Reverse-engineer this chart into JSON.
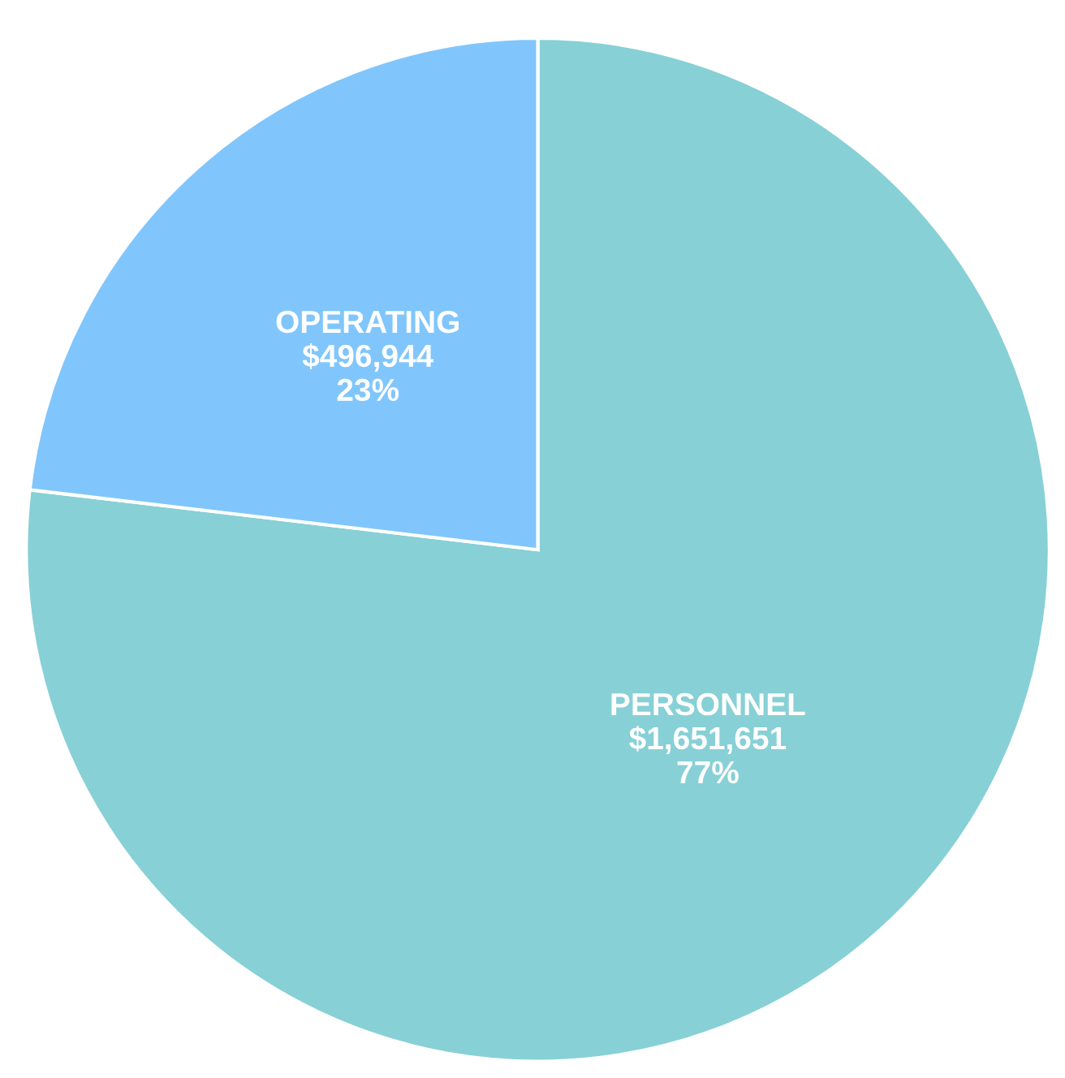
{
  "chart_data": {
    "type": "pie",
    "categories": [
      "PERSONNEL",
      "OPERATING"
    ],
    "values": [
      1651651,
      496944
    ],
    "colors": [
      "#87d0d6",
      "#80c6fc"
    ],
    "value_labels": [
      "$1,651,651\n77%",
      "$496,944\n23%"
    ],
    "legend": false
  }
}
